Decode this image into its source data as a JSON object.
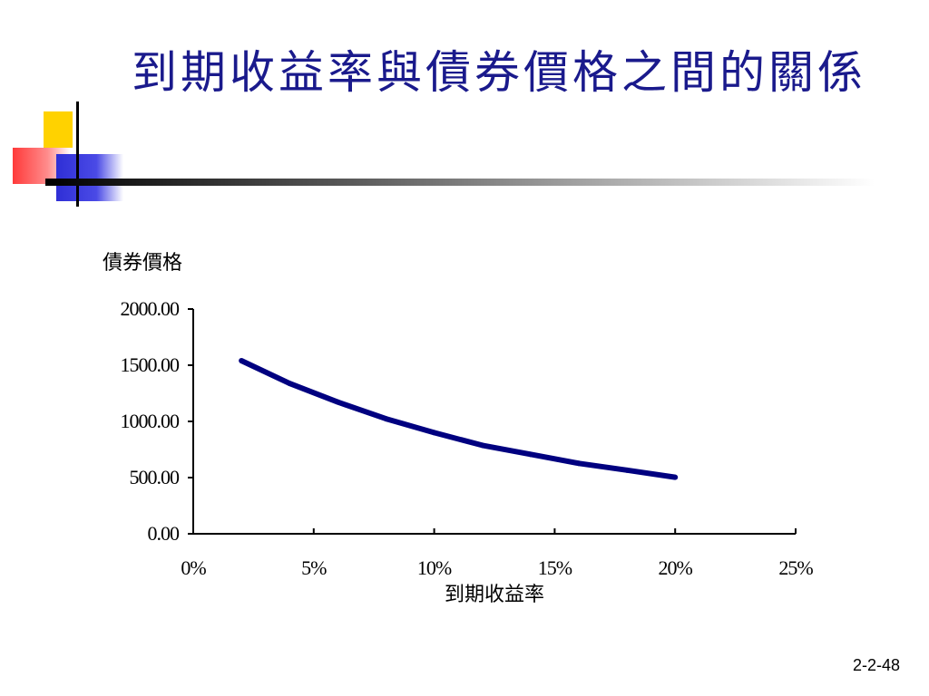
{
  "slide": {
    "title": "到期收益率與債券價格之間的關係",
    "page_number": "2-2-48"
  },
  "chart_data": {
    "type": "line",
    "title": "",
    "xlabel": "到期收益率",
    "ylabel": "債券價格",
    "xlim": [
      0,
      25
    ],
    "ylim": [
      0,
      2000
    ],
    "x_ticks": [
      "0%",
      "5%",
      "10%",
      "15%",
      "20%",
      "25%"
    ],
    "y_ticks": [
      "0.00",
      "500.00",
      "1000.00",
      "1500.00",
      "2000.00"
    ],
    "series": [
      {
        "color": "#000080",
        "x": [
          2,
          4,
          6,
          8,
          10,
          12,
          14,
          16,
          18,
          20
        ],
        "y": [
          1540,
          1338,
          1172,
          1023,
          900,
          787,
          707,
          627,
          566,
          503
        ]
      }
    ],
    "grid": false,
    "legend": "none"
  }
}
